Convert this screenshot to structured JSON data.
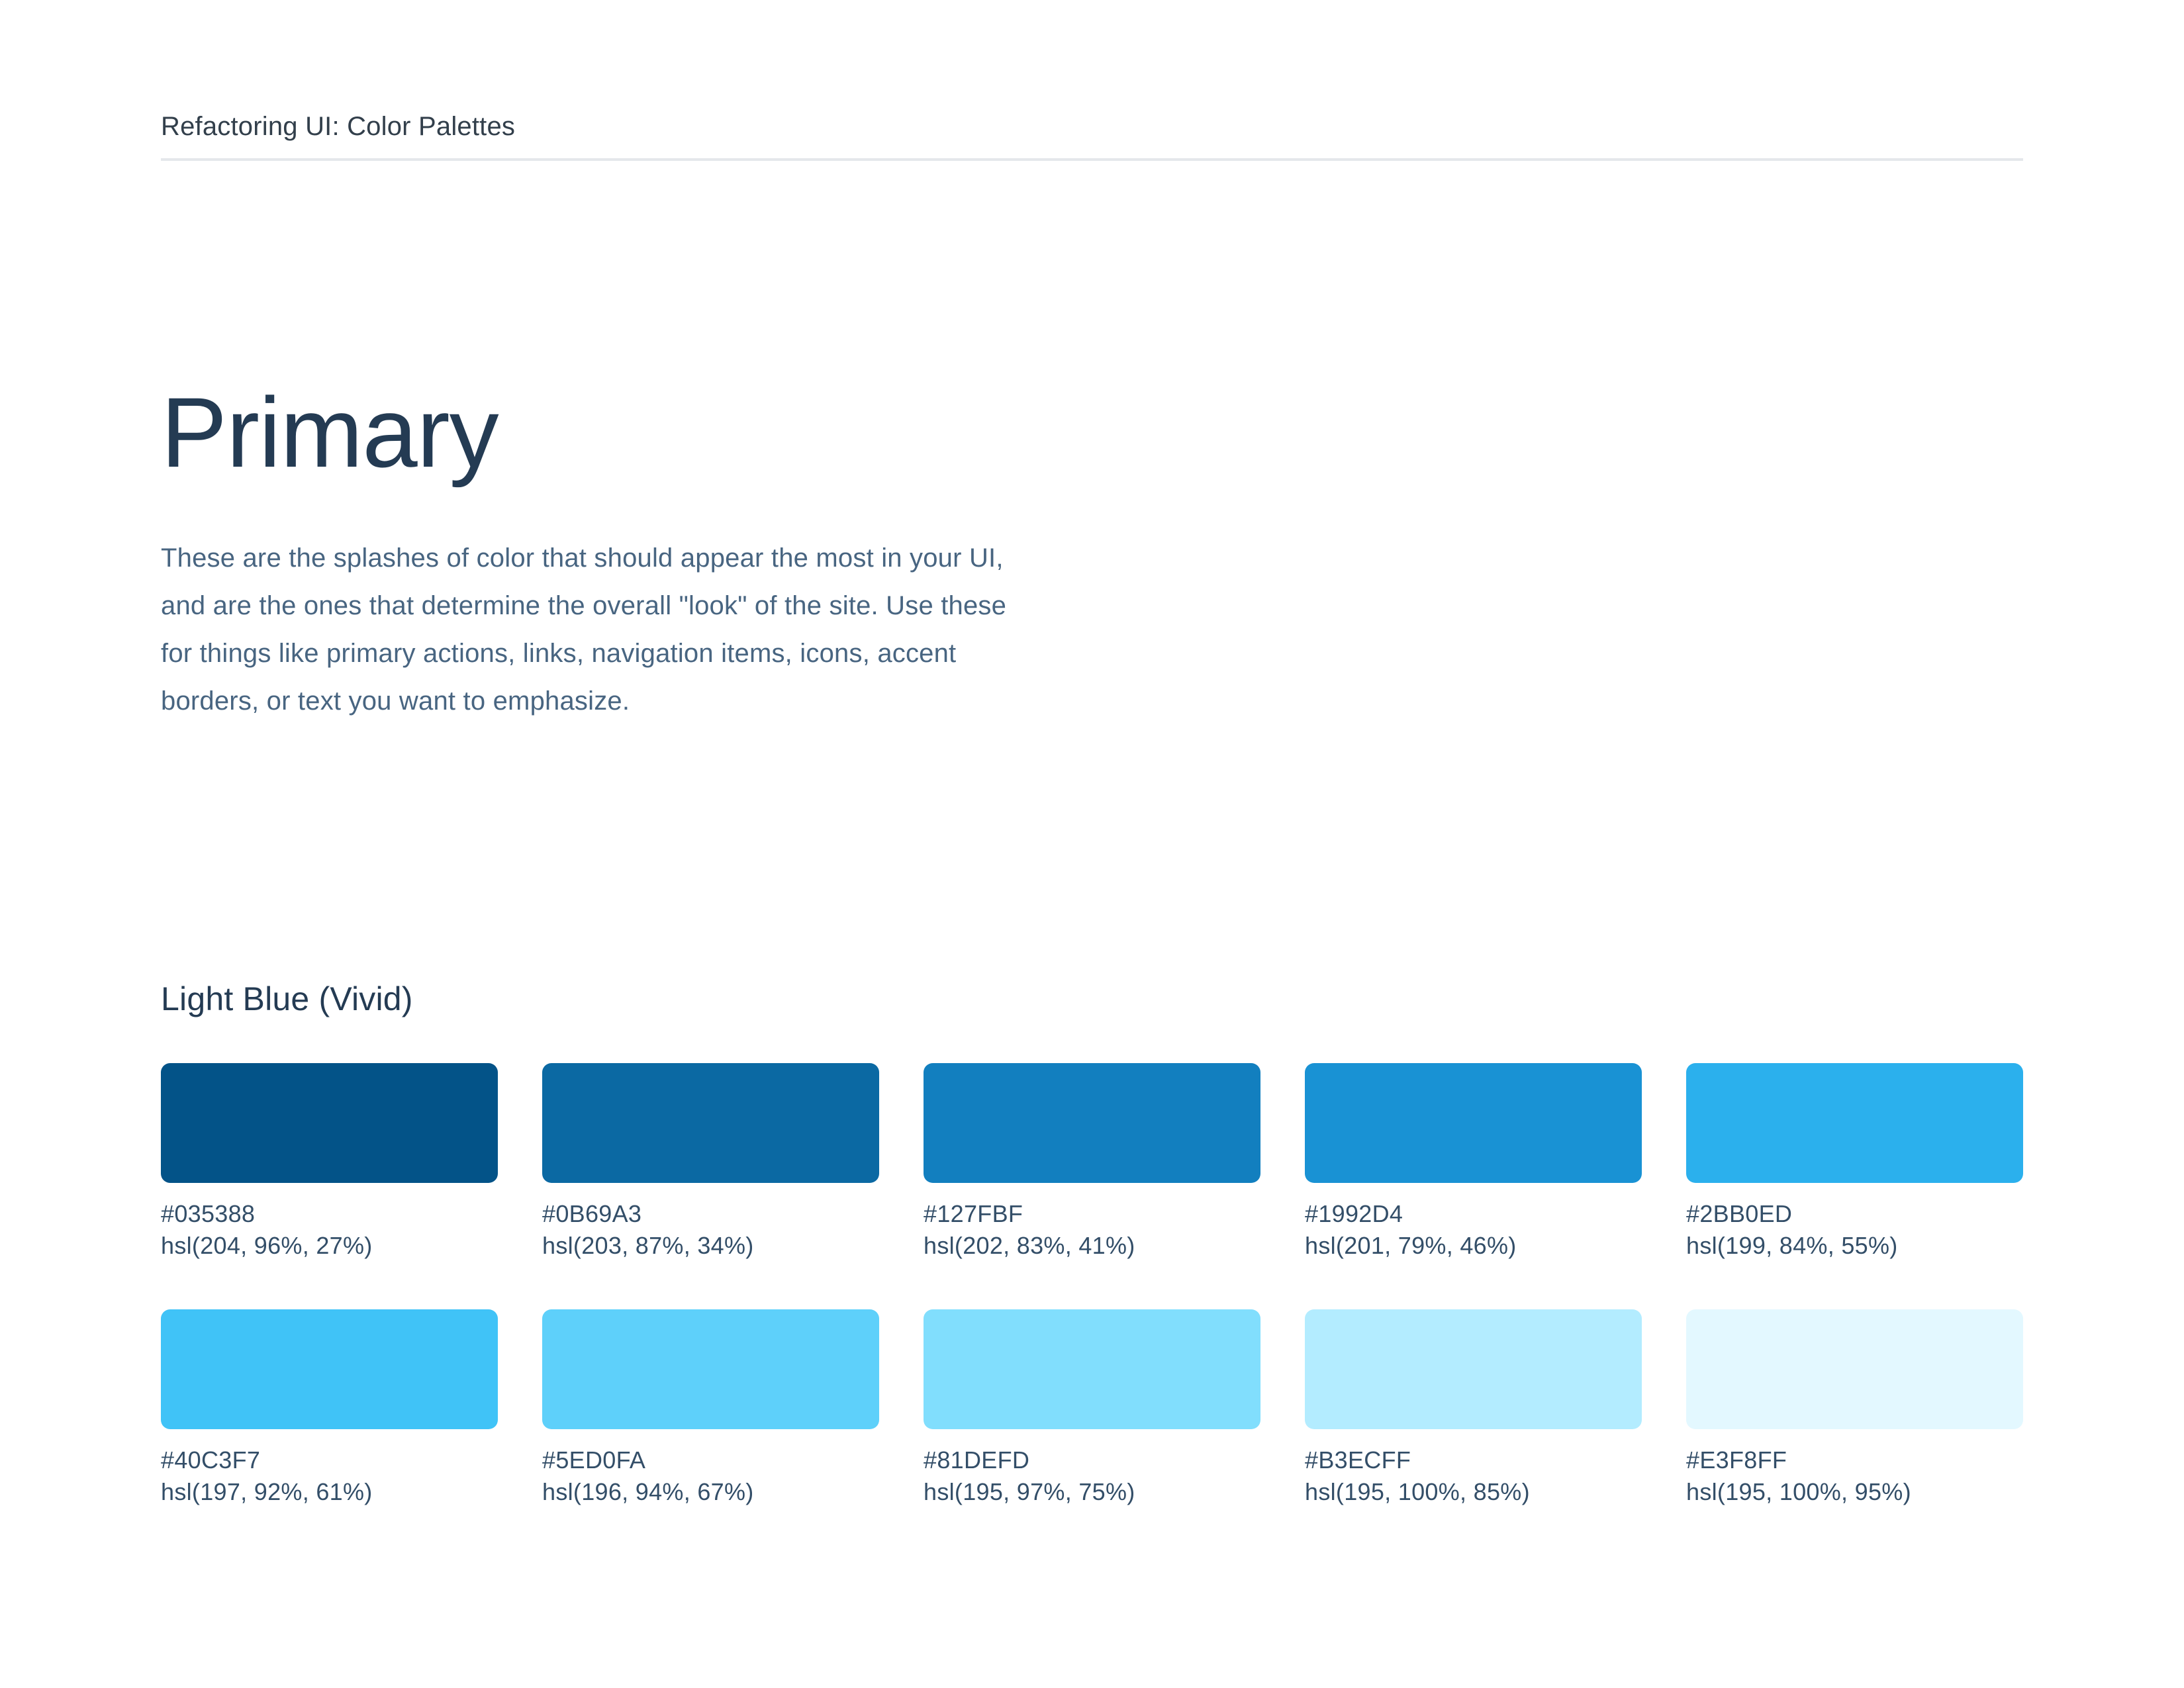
{
  "header": {
    "title": "Refactoring UI: Color Palettes"
  },
  "main": {
    "heading": "Primary",
    "description_lines": [
      "These are the splashes of color that should appear the most in your UI,",
      "and are the ones that determine the overall \"look\" of the site. Use these",
      "for things like primary actions, links, navigation items, icons, accent",
      "borders, or text you want to emphasize."
    ]
  },
  "palette": {
    "name": "Light Blue (Vivid)",
    "swatches": [
      {
        "hex": "#035388",
        "hsl": "hsl(204, 96%, 27%)"
      },
      {
        "hex": "#0B69A3",
        "hsl": "hsl(203, 87%, 34%)"
      },
      {
        "hex": "#127FBF",
        "hsl": "hsl(202, 83%, 41%)"
      },
      {
        "hex": "#1992D4",
        "hsl": "hsl(201, 79%, 46%)"
      },
      {
        "hex": "#2BB0ED",
        "hsl": "hsl(199, 84%, 55%)"
      },
      {
        "hex": "#40C3F7",
        "hsl": "hsl(197, 92%, 61%)"
      },
      {
        "hex": "#5ED0FA",
        "hsl": "hsl(196, 94%, 67%)"
      },
      {
        "hex": "#81DEFD",
        "hsl": "hsl(195, 97%, 75%)"
      },
      {
        "hex": "#B3ECFF",
        "hsl": "hsl(195, 100%, 85%)"
      },
      {
        "hex": "#E3F8FF",
        "hsl": "hsl(195, 100%, 95%)"
      }
    ]
  },
  "colors": {
    "page_bg": "#FFFFFF",
    "header_text": "#323F4B",
    "heading_text": "#243B53",
    "body_text": "#486581",
    "label_text": "#334E68",
    "divider": "#E4E7EB"
  }
}
